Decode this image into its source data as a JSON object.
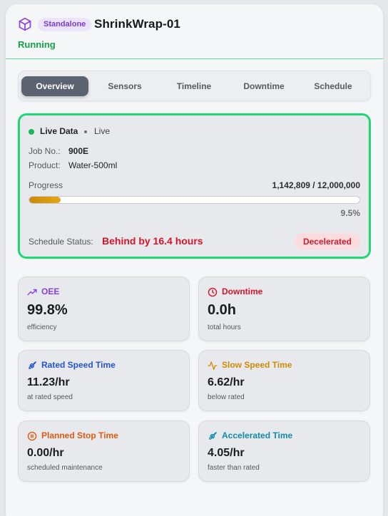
{
  "header": {
    "badge": "Standalone",
    "machine_name": "ShrinkWrap-01",
    "status": "Running"
  },
  "tabs": [
    {
      "label": "Overview",
      "active": true
    },
    {
      "label": "Sensors",
      "active": false
    },
    {
      "label": "Timeline",
      "active": false
    },
    {
      "label": "Downtime",
      "active": false
    },
    {
      "label": "Schedule",
      "active": false
    }
  ],
  "live": {
    "title": "Live Data",
    "tag": "Live",
    "job_label": "Job No.:",
    "job_value": "900E",
    "product_label": "Product:",
    "product_value": "Water-500ml",
    "progress_label": "Progress",
    "progress_count": "1,142,809 / 12,000,000",
    "progress_fraction": 0.095,
    "progress_pct": "9.5%",
    "schedule_label": "Schedule Status:",
    "schedule_value": "Behind by 16.4 hours",
    "schedule_badge": "Decelerated"
  },
  "metrics": [
    {
      "title": "OEE",
      "value": "99.8%",
      "sub": "efficiency",
      "color": "#8a3fe0",
      "icon": "trending-up-icon"
    },
    {
      "title": "Downtime",
      "value": "0.0h",
      "sub": "total hours",
      "color": "#d6142a",
      "icon": "clock-icon"
    },
    {
      "title": "Rated Speed Time",
      "value": "11.23/hr",
      "sub": "at rated speed",
      "color": "#2453d6",
      "icon": "rocket-icon"
    },
    {
      "title": "Slow Speed Time",
      "value": "6.62/hr",
      "sub": "below rated",
      "color": "#cf8a0a",
      "icon": "activity-icon"
    },
    {
      "title": "Planned Stop Time",
      "value": "0.00/hr",
      "sub": "scheduled maintenance",
      "color": "#e05a12",
      "icon": "pause-circle-icon"
    },
    {
      "title": "Accelerated Time",
      "value": "4.05/hr",
      "sub": "faster than rated",
      "color": "#0f8aa8",
      "icon": "rocket-icon"
    }
  ]
}
